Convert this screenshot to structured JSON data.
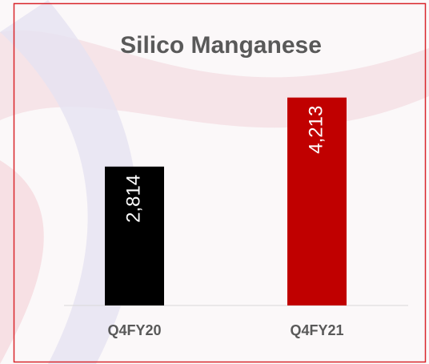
{
  "chart_data": {
    "type": "bar",
    "title": "Silico Manganese",
    "categories": [
      "Q4FY20",
      "Q4FY21"
    ],
    "values": [
      2814,
      4213
    ],
    "value_labels": [
      "2,814",
      "4,213"
    ],
    "colors": [
      "#000000",
      "#c00000"
    ],
    "ylim": [
      0,
      4500
    ]
  }
}
